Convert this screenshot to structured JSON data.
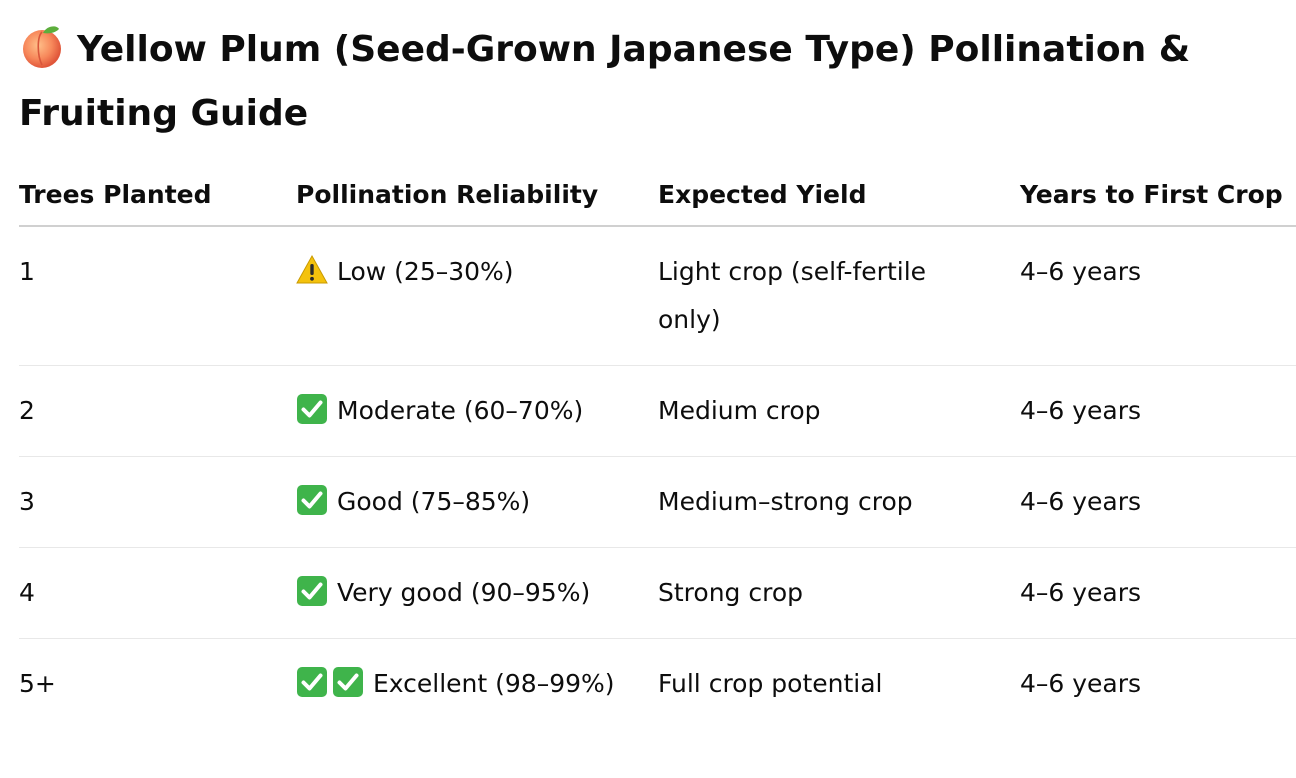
{
  "title": "Yellow Plum (Seed-Grown Japanese Type) Pollination & Fruiting Guide",
  "title_icon": "peach-icon",
  "columns": [
    "Trees Planted",
    "Pollination Reliability",
    "Expected Yield",
    "Years to First Crop"
  ],
  "rows": [
    {
      "trees": "1",
      "icons": [
        "warning-icon"
      ],
      "reliability": "Low (25–30%)",
      "yield": "Light crop (self-fertile only)",
      "years": "4–6 years"
    },
    {
      "trees": "2",
      "icons": [
        "check-icon"
      ],
      "reliability": "Moderate (60–70%)",
      "yield": "Medium crop",
      "years": "4–6 years"
    },
    {
      "trees": "3",
      "icons": [
        "check-icon"
      ],
      "reliability": "Good (75–85%)",
      "yield": "Medium–strong crop",
      "years": "4–6 years"
    },
    {
      "trees": "4",
      "icons": [
        "check-icon"
      ],
      "reliability": "Very good (90–95%)",
      "yield": "Strong crop",
      "years": "4–6 years"
    },
    {
      "trees": "5+",
      "icons": [
        "check-icon",
        "check-icon"
      ],
      "reliability": "Excellent (98–99%)",
      "yield": "Full crop potential",
      "years": "4–6 years"
    }
  ],
  "colors": {
    "check_green": "#3fb44b",
    "warning_yellow": "#f4c20d",
    "peach": "#f7885b"
  }
}
